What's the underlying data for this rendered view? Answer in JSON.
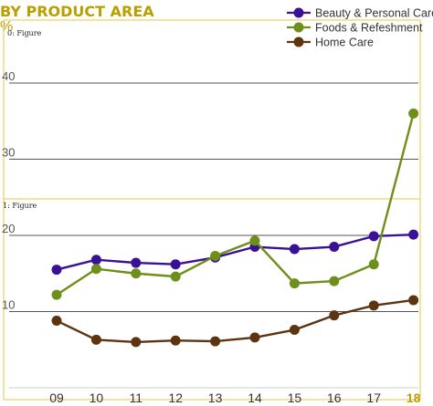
{
  "chart_data": {
    "type": "line",
    "title": "BY PRODUCT AREA",
    "unit_label": "%",
    "figure_tags": [
      "0: Figure",
      "1: Figure"
    ],
    "categories": [
      "09",
      "10",
      "11",
      "12",
      "13",
      "14",
      "15",
      "16",
      "17",
      "18"
    ],
    "highlight_category": "18",
    "ylim": [
      0,
      50
    ],
    "yticks": [
      "10",
      "20",
      "30",
      "40"
    ],
    "grid": true,
    "legend_position": "top-right",
    "series": [
      {
        "name": "Beauty & Personal Care",
        "color": "#3a1096",
        "values": [
          15.5,
          16.8,
          16.4,
          16.2,
          17.1,
          18.5,
          18.2,
          18.5,
          19.9,
          20.1
        ]
      },
      {
        "name": "Foods & Refeshment",
        "color": "#6e8f1a",
        "values": [
          12.2,
          15.6,
          15.0,
          14.6,
          17.3,
          19.3,
          13.7,
          14.0,
          16.2,
          36.0
        ]
      },
      {
        "name": "Home Care",
        "color": "#5c3410",
        "values": [
          8.8,
          6.3,
          6.0,
          6.2,
          6.1,
          6.6,
          7.6,
          9.5,
          10.8,
          11.5
        ]
      }
    ]
  }
}
